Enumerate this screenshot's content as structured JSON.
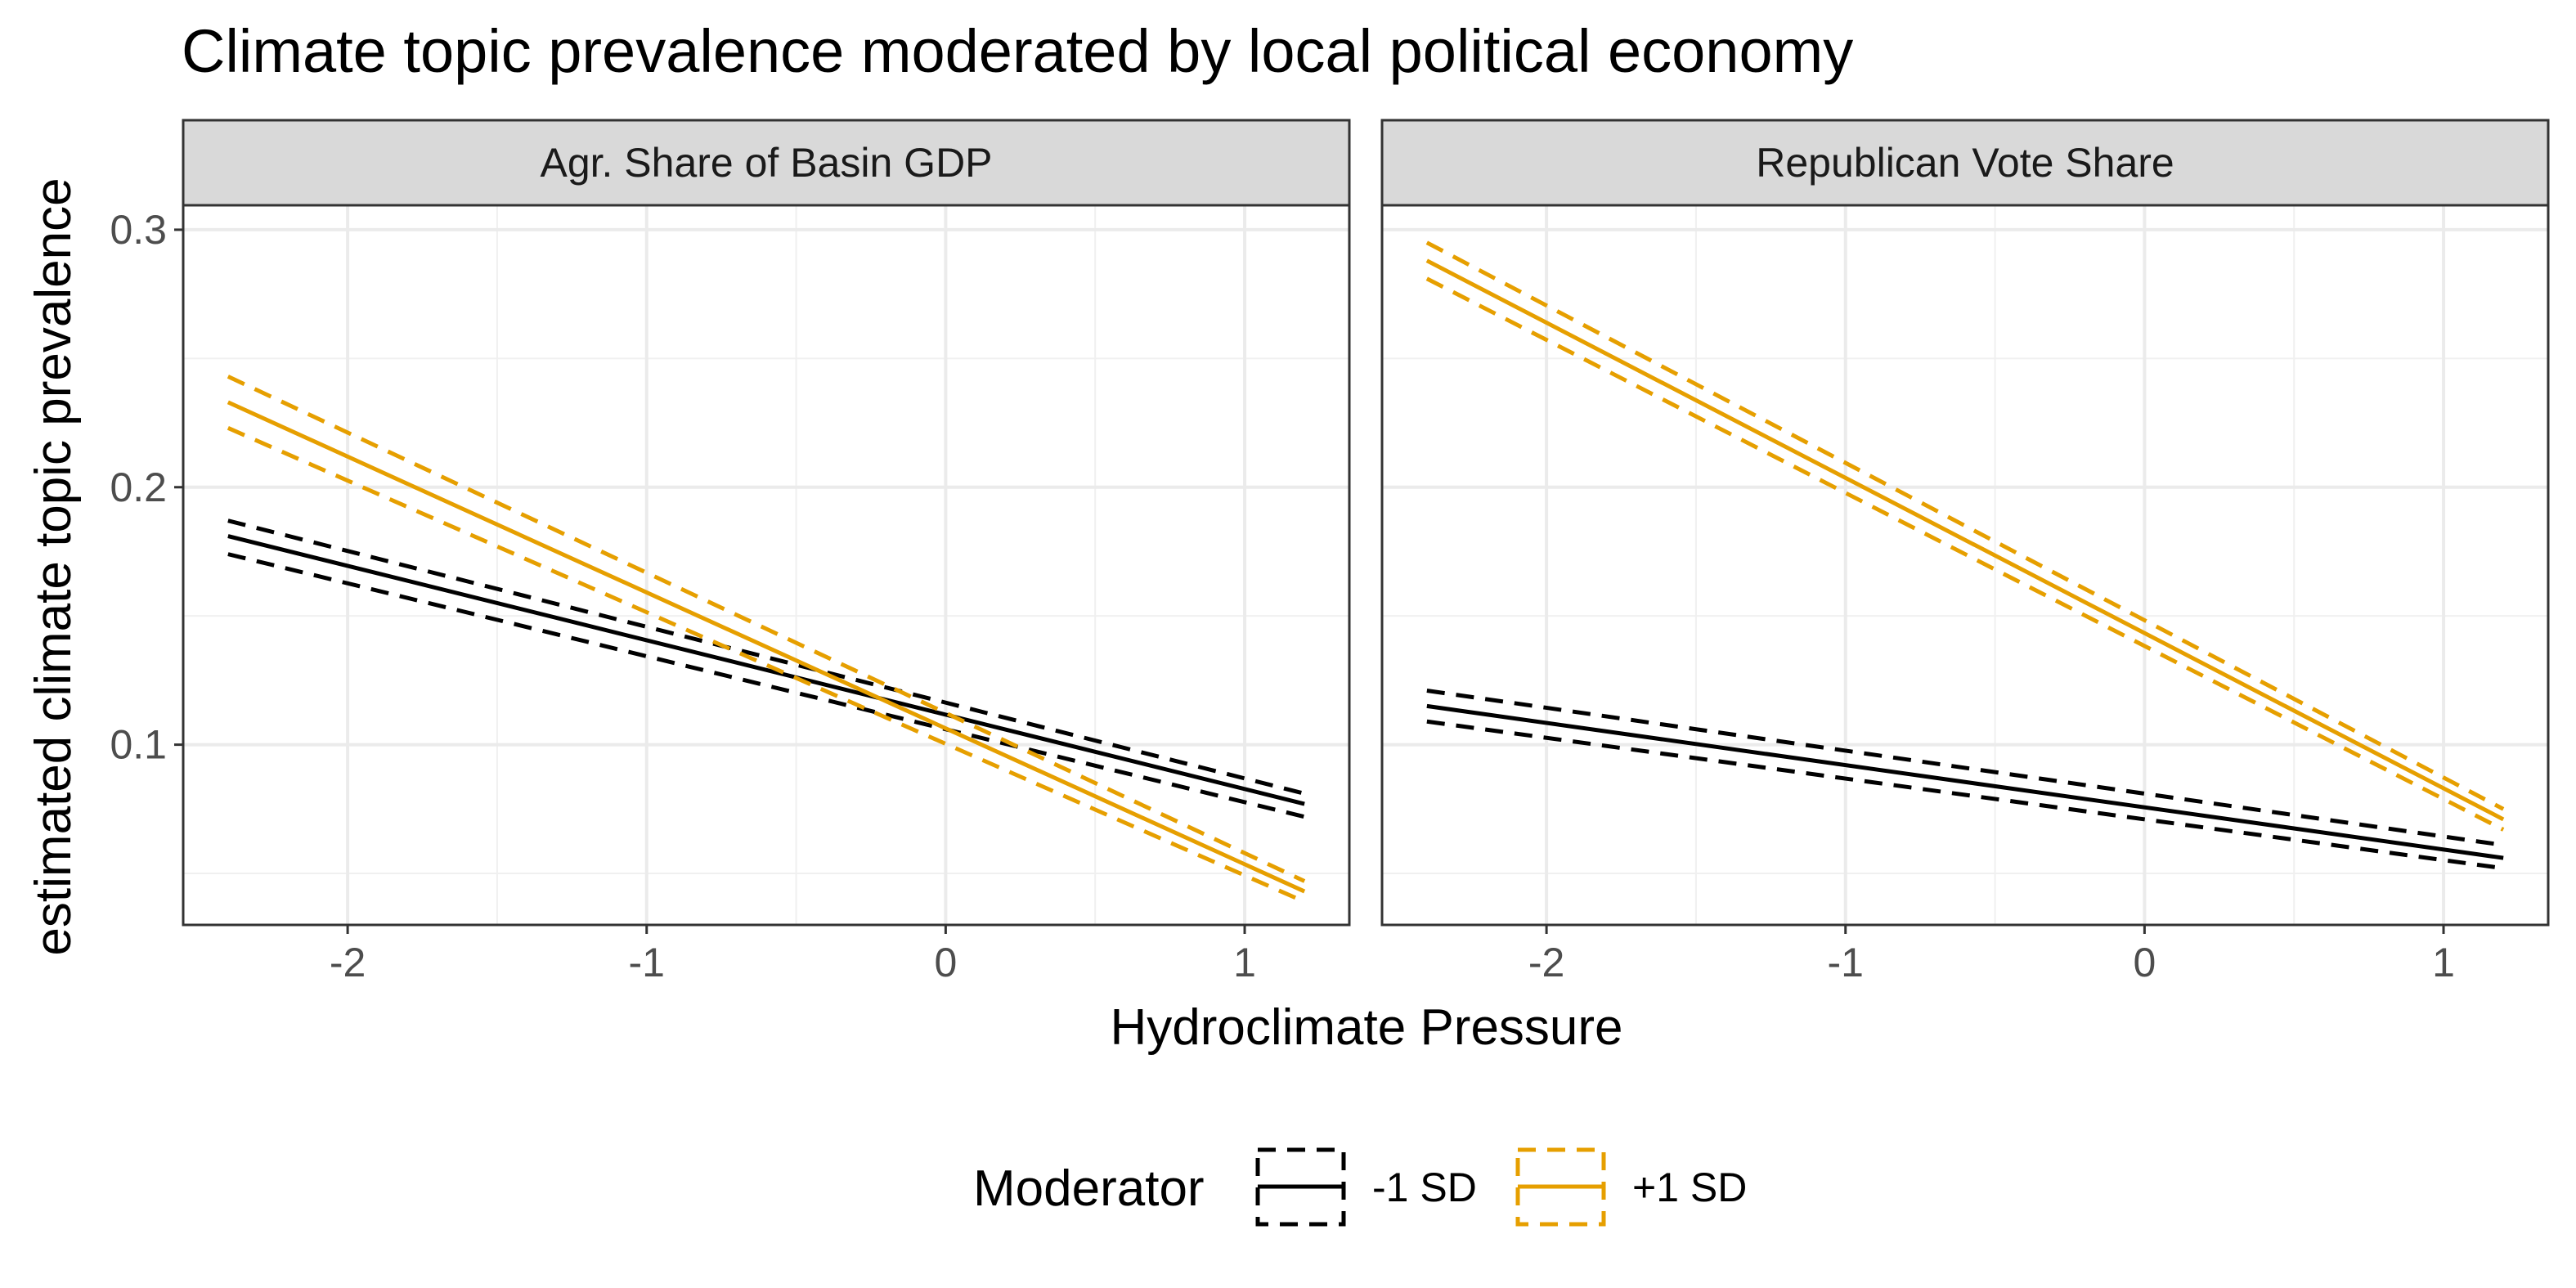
{
  "chart_data": {
    "type": "line",
    "title": "Climate topic prevalence moderated by local political economy",
    "xlabel": "Hydroclimate Pressure",
    "ylabel": "estimated climate topic prevalence",
    "xlim": [
      -2.55,
      1.35
    ],
    "ylim": [
      0.03,
      0.3095
    ],
    "x_ticks": [
      -2,
      -1,
      0,
      1
    ],
    "x_tick_labels": [
      "-2",
      "-1",
      "0",
      "1"
    ],
    "y_ticks": [
      0.1,
      0.2,
      0.3
    ],
    "y_tick_labels": [
      "0.1",
      "0.2",
      "0.3"
    ],
    "grid": true,
    "legend": {
      "title": "Moderator",
      "position": "bottom",
      "items": [
        {
          "label": "-1 SD",
          "color": "#000000"
        },
        {
          "label": "+1 SD",
          "color": "#E69F00"
        }
      ]
    },
    "panels": [
      {
        "label": "Agr. Share of Basin GDP",
        "series": [
          {
            "name": "-1 SD",
            "color": "#000000",
            "x": [
              -2.4,
              1.2
            ],
            "y": [
              0.181,
              0.077
            ],
            "lower": [
              0.174,
              0.072
            ],
            "upper": [
              0.187,
              0.081
            ]
          },
          {
            "name": "+1 SD",
            "color": "#E69F00",
            "x": [
              -2.4,
              1.2
            ],
            "y": [
              0.233,
              0.043
            ],
            "lower": [
              0.223,
              0.039
            ],
            "upper": [
              0.243,
              0.047
            ]
          }
        ]
      },
      {
        "label": "Republican Vote Share",
        "series": [
          {
            "name": "-1 SD",
            "color": "#000000",
            "x": [
              -2.4,
              1.2
            ],
            "y": [
              0.115,
              0.056
            ],
            "lower": [
              0.109,
              0.052
            ],
            "upper": [
              0.121,
              0.061
            ]
          },
          {
            "name": "+1 SD",
            "color": "#E69F00",
            "x": [
              -2.4,
              1.2
            ],
            "y": [
              0.288,
              0.071
            ],
            "lower": [
              0.281,
              0.067
            ],
            "upper": [
              0.295,
              0.075
            ]
          }
        ]
      }
    ]
  }
}
